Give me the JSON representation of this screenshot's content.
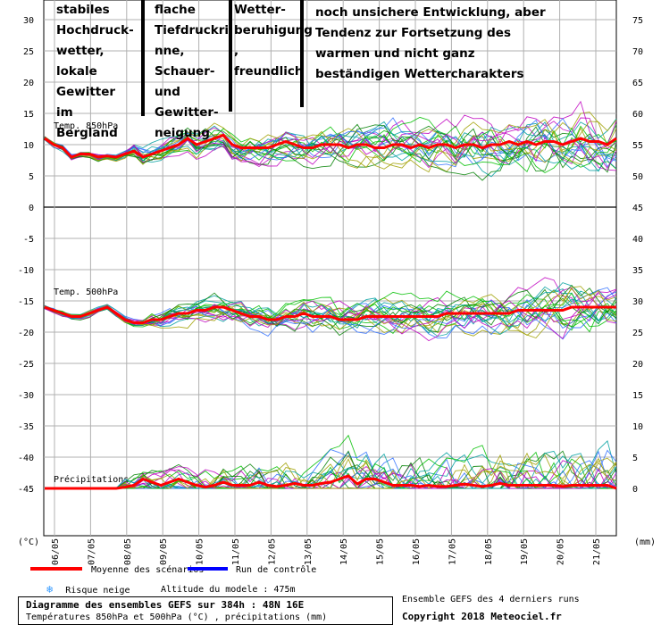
{
  "chart_data": {
    "type": "line",
    "title": "Diagramme des ensembles GEFS sur 384h : 48N 16E",
    "subtitle": "Températures 850hPa et 500hPa (°C) , précipitations (mm)",
    "x_ticks": [
      "06/05",
      "07/05",
      "08/05",
      "09/05",
      "10/05",
      "11/05",
      "12/05",
      "13/05",
      "14/05",
      "15/05",
      "16/05",
      "17/05",
      "18/05",
      "19/05",
      "20/05",
      "21/05"
    ],
    "left_axis": {
      "unit_label": "(°C)",
      "ticks": [
        30,
        25,
        20,
        15,
        10,
        5,
        0,
        -5,
        -10,
        -15,
        -20,
        -25,
        -30,
        -35,
        -40,
        -45
      ]
    },
    "right_axis_top": {
      "ticks": [
        75,
        70,
        65,
        60,
        55,
        50,
        45
      ]
    },
    "right_axis_middle": {
      "ticks": [
        40,
        35,
        30,
        25,
        20
      ]
    },
    "right_axis_bottom": {
      "unit_label": "(mm)",
      "ticks": [
        15,
        10,
        5,
        0
      ]
    },
    "panels": [
      {
        "label": "Temp. 850hPa",
        "mean": [
          11,
          10,
          9.5,
          8,
          8.5,
          8.5,
          8,
          8.2,
          8,
          8.5,
          9,
          8,
          8.5,
          9,
          9.5,
          10,
          11,
          10,
          10.5,
          11,
          11.5,
          10,
          9.5,
          9.5,
          9.5,
          9.5,
          10,
          10.5,
          10,
          9.5,
          9.5,
          10,
          10,
          10,
          9.5,
          10,
          10,
          9.5,
          9.5,
          10,
          10,
          9.5,
          10,
          9.5,
          10,
          10,
          9.5,
          10,
          10,
          9.5,
          10,
          10,
          10.5,
          10,
          10.5,
          10,
          10.5,
          10.5,
          10,
          10.5,
          11,
          10.5,
          10.5,
          10,
          11
        ]
      },
      {
        "label": "Temp. 500hPa",
        "mean": [
          -16,
          -16.5,
          -17,
          -17.5,
          -17.5,
          -17,
          -16.5,
          -16,
          -17,
          -18,
          -18.5,
          -18.5,
          -18,
          -18,
          -17.5,
          -17,
          -17,
          -16.5,
          -16.5,
          -16,
          -16,
          -16.5,
          -17,
          -17.5,
          -17.5,
          -18,
          -18,
          -17.5,
          -17.5,
          -17,
          -17.5,
          -17.5,
          -17.5,
          -18,
          -18,
          -18,
          -17.5,
          -17.5,
          -17.5,
          -17.5,
          -17.5,
          -17.5,
          -17.5,
          -17.5,
          -17.5,
          -17,
          -17,
          -17,
          -17,
          -17,
          -17,
          -17,
          -17,
          -16.5,
          -16.5,
          -16.5,
          -16.5,
          -16.5,
          -16.5,
          -16,
          -16,
          -16,
          -16,
          -16,
          -16
        ]
      },
      {
        "label": "Précipitations",
        "mean": [
          0,
          0,
          0,
          0,
          0,
          0,
          0,
          0,
          0,
          0.2,
          0.5,
          1.5,
          1,
          0.5,
          1,
          1.5,
          1,
          0.5,
          0.2,
          0.5,
          1,
          0.5,
          0.5,
          0.5,
          1,
          0.5,
          0.3,
          0.5,
          0.8,
          0.5,
          0.5,
          0.8,
          1,
          1.5,
          2,
          0.7,
          1.5,
          1.5,
          1,
          0.5,
          0.5,
          0.5,
          0.3,
          0.5,
          0.3,
          0.3,
          0.5,
          0.7,
          0.5,
          0.3,
          0.5,
          0.8,
          0.5,
          0.5,
          0.5,
          0.5,
          0.5,
          0.5,
          0.3,
          0.5,
          0.5,
          0.5,
          0.5,
          0.5,
          0
        ]
      }
    ],
    "legend": [
      {
        "name": "Moyenne des scénarios",
        "color": "#ff0000"
      },
      {
        "name": "Run de contrôle",
        "color": "#0000ff"
      }
    ],
    "colors": {
      "mean": "#ff0000",
      "control": "#0000ff",
      "members": [
        "#00c000",
        "#00a0a0",
        "#c000c0",
        "#a0a000",
        "#3070ff",
        "#008000"
      ]
    },
    "annotations": [
      {
        "key": "a1",
        "lines": [
          "stabiles",
          "Hochdruck-",
          "wetter,",
          "lokale",
          "Gewitter",
          "im",
          "Bergland"
        ]
      },
      {
        "key": "a2",
        "lines": [
          "flache",
          "Tiefdruckri",
          "nne,",
          "Schauer-",
          "und",
          "Gewitter-",
          "neigung"
        ]
      },
      {
        "key": "a3",
        "lines": [
          "Wetter-",
          "beruhigung",
          ",",
          "freundlich"
        ]
      },
      {
        "key": "a4",
        "lines": [
          "noch unsichere Entwicklung, aber",
          "Tendenz zur Fortsetzung des",
          "warmen und nicht ganz",
          "beständigen Wettercharakters"
        ]
      }
    ]
  },
  "footer": {
    "snow_risk": "Risque neige",
    "altitude": "Altitude du modele : 475m",
    "title": "Diagramme des ensembles GEFS sur 384h : 48N 16E",
    "subtitle": "Températures 850hPa et 500hPa (°C) , précipitations (mm)",
    "ensemble_note": "Ensemble GEFS des 4 derniers runs",
    "copyright": "Copyright 2018 Meteociel.fr"
  }
}
